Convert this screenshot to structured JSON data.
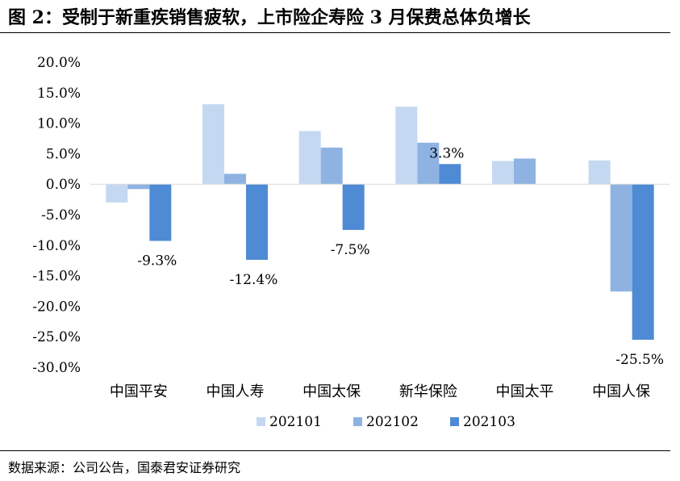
{
  "header": {
    "title": "图 2：受制于新重疾销售疲软，上市险企寿险 3 月保费总体负增长"
  },
  "footer": {
    "source": "数据来源：公司公告，国泰君安证券研究"
  },
  "colors": {
    "202101": "#c5d8f1",
    "202102": "#8eb3e3",
    "202103": "#4f8ad4"
  },
  "chart_data": {
    "type": "bar",
    "title": "",
    "xlabel": "",
    "ylabel": "",
    "categories": [
      "中国平安",
      "中国人寿",
      "中国太保",
      "新华保险",
      "中国太平",
      "中国人保"
    ],
    "series": [
      {
        "name": "202101",
        "values": [
          -3.0,
          13.1,
          8.7,
          12.7,
          3.8,
          3.9
        ]
      },
      {
        "name": "202102",
        "values": [
          -0.8,
          1.7,
          6.0,
          6.8,
          4.2,
          -17.6
        ]
      },
      {
        "name": "202103",
        "values": [
          -9.3,
          -12.4,
          -7.5,
          3.3,
          null,
          -25.5
        ]
      }
    ],
    "data_labels": [
      {
        "series": "202103",
        "category": "中国平安",
        "text": "-9.3%"
      },
      {
        "series": "202103",
        "category": "中国人寿",
        "text": "-12.4%"
      },
      {
        "series": "202103",
        "category": "中国太保",
        "text": "-7.5%"
      },
      {
        "series": "202103",
        "category": "新华保险",
        "text": "3.3%"
      },
      {
        "series": "202103",
        "category": "中国人保",
        "text": "-25.5%"
      }
    ],
    "yticks": [
      "20.0%",
      "15.0%",
      "10.0%",
      "5.0%",
      "0.0%",
      "-5.0%",
      "-10.0%",
      "-15.0%",
      "-20.0%",
      "-25.0%",
      "-30.0%"
    ],
    "ylim": [
      -30,
      20
    ],
    "grid": false,
    "legend_position": "bottom"
  }
}
